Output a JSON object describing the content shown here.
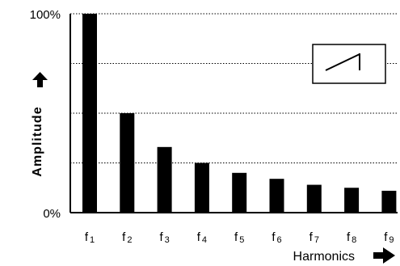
{
  "chart_data": {
    "type": "bar",
    "categories": [
      "f1",
      "f2",
      "f3",
      "f4",
      "f5",
      "f6",
      "f7",
      "f8",
      "f9"
    ],
    "category_labels": [
      {
        "base": "f",
        "sub": "1"
      },
      {
        "base": "f",
        "sub": "2"
      },
      {
        "base": "f",
        "sub": "3"
      },
      {
        "base": "f",
        "sub": "4"
      },
      {
        "base": "f",
        "sub": "5"
      },
      {
        "base": "f",
        "sub": "6"
      },
      {
        "base": "f",
        "sub": "7"
      },
      {
        "base": "f",
        "sub": "8"
      },
      {
        "base": "f",
        "sub": "9"
      }
    ],
    "values": [
      100,
      50,
      33,
      25,
      20,
      17,
      14,
      12.5,
      11
    ],
    "ylim": [
      0,
      100
    ],
    "yticks": [
      {
        "value": 0,
        "label": "0%"
      },
      {
        "value": 100,
        "label": "100%"
      }
    ],
    "gridlines": [
      25,
      50,
      75,
      100
    ],
    "grid": true,
    "xlabel": "Harmonics",
    "ylabel": "Amplitude",
    "inset_icon": "sawtooth-wave-icon",
    "colors": {
      "bar": "#000000",
      "axis": "#000000",
      "grid": "#000000",
      "background": "#ffffff"
    }
  }
}
